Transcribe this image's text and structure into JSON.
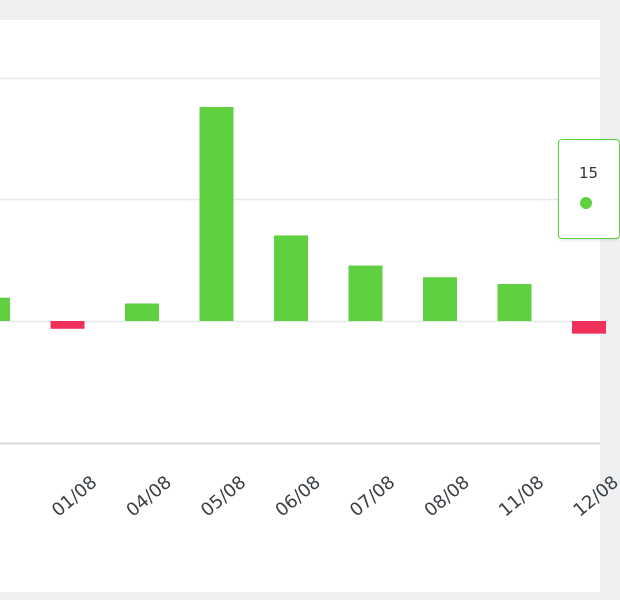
{
  "chart_data": {
    "type": "bar",
    "categories": [
      "",
      "01/08",
      "04/08",
      "05/08",
      "06/08",
      "07/08",
      "08/08",
      "11/08",
      "12/08"
    ],
    "values": [
      2.4,
      -0.8,
      1.8,
      22,
      8.8,
      5.7,
      4.5,
      3.8,
      -1.3
    ],
    "ylim": [
      -13,
      25
    ],
    "gridlines": [
      25,
      12.5,
      0,
      -12.5
    ],
    "grid": true,
    "legend": "none"
  },
  "tooltip": {
    "label": "15",
    "marker_color": "#5fd141"
  },
  "colors": {
    "positive": "#5fd141",
    "negative": "#f0305a",
    "grid": "#e6e8ea",
    "baseline": "#d5d8db"
  }
}
